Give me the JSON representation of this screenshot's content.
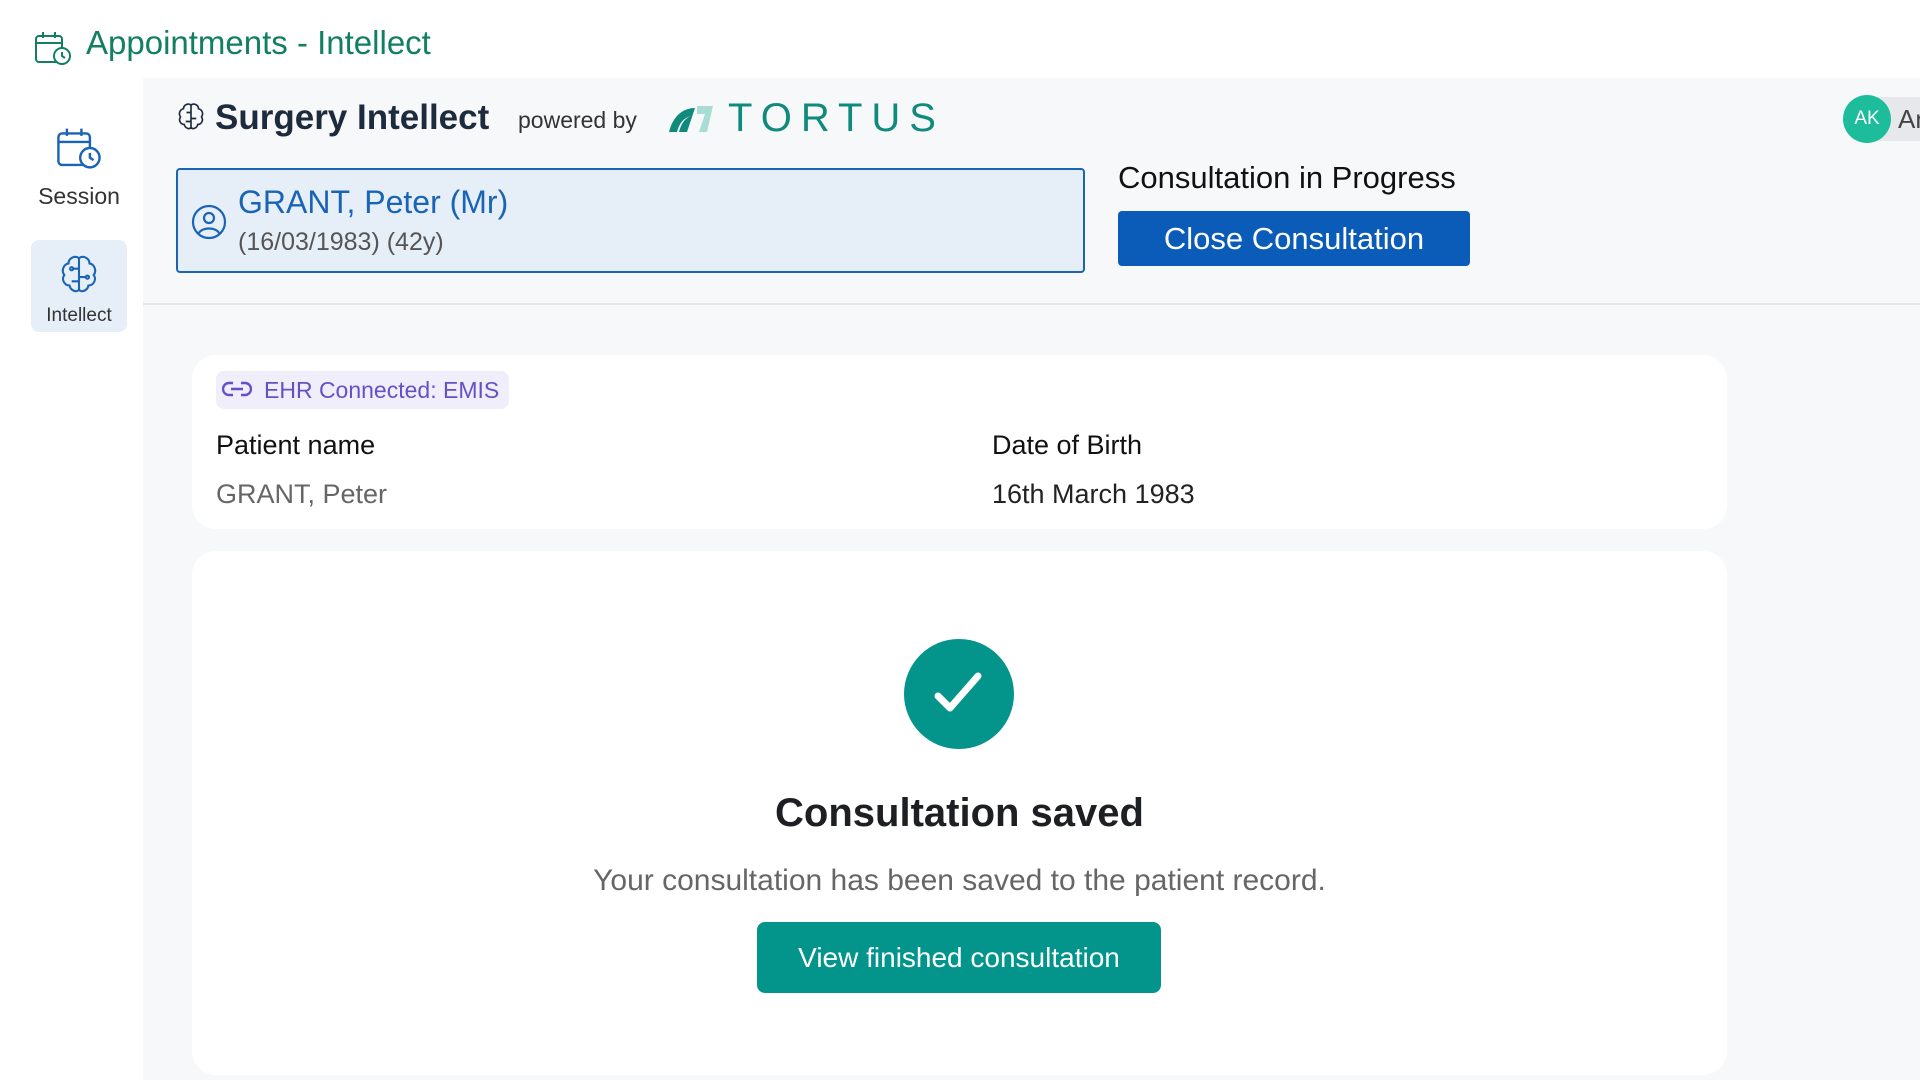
{
  "window": {
    "title": "Appointments - Intellect",
    "icon": "calendar-clock-icon"
  },
  "sidebar": {
    "items": [
      {
        "label": "Session",
        "icon": "calendar-clock-icon",
        "selected": false
      },
      {
        "label": "Intellect",
        "icon": "brain-icon",
        "selected": true
      }
    ]
  },
  "header": {
    "product": "Surgery Intellect",
    "powered_by": "powered by",
    "brand": "TORTUS",
    "user_initials": "AK",
    "user_name_partial": "An"
  },
  "patient": {
    "name": "GRANT, Peter (Mr)",
    "dob_age": "(16/03/1983)  (42y)"
  },
  "consultation": {
    "status": "Consultation in Progress",
    "close_label": "Close Consultation"
  },
  "details": {
    "ehr_badge": "EHR Connected: EMIS",
    "name_label": "Patient name",
    "name_value": "GRANT, Peter",
    "dob_label": "Date of Birth",
    "dob_value": "16th March 1983"
  },
  "result": {
    "title": "Consultation saved",
    "message": "Your consultation has been saved to the patient record.",
    "button": "View finished consultation"
  },
  "colors": {
    "teal": "#03948c",
    "blue": "#0a5cb8",
    "title_green": "#127e62",
    "badge_purple": "#6750c6",
    "avatar": "#1dbd9b"
  }
}
